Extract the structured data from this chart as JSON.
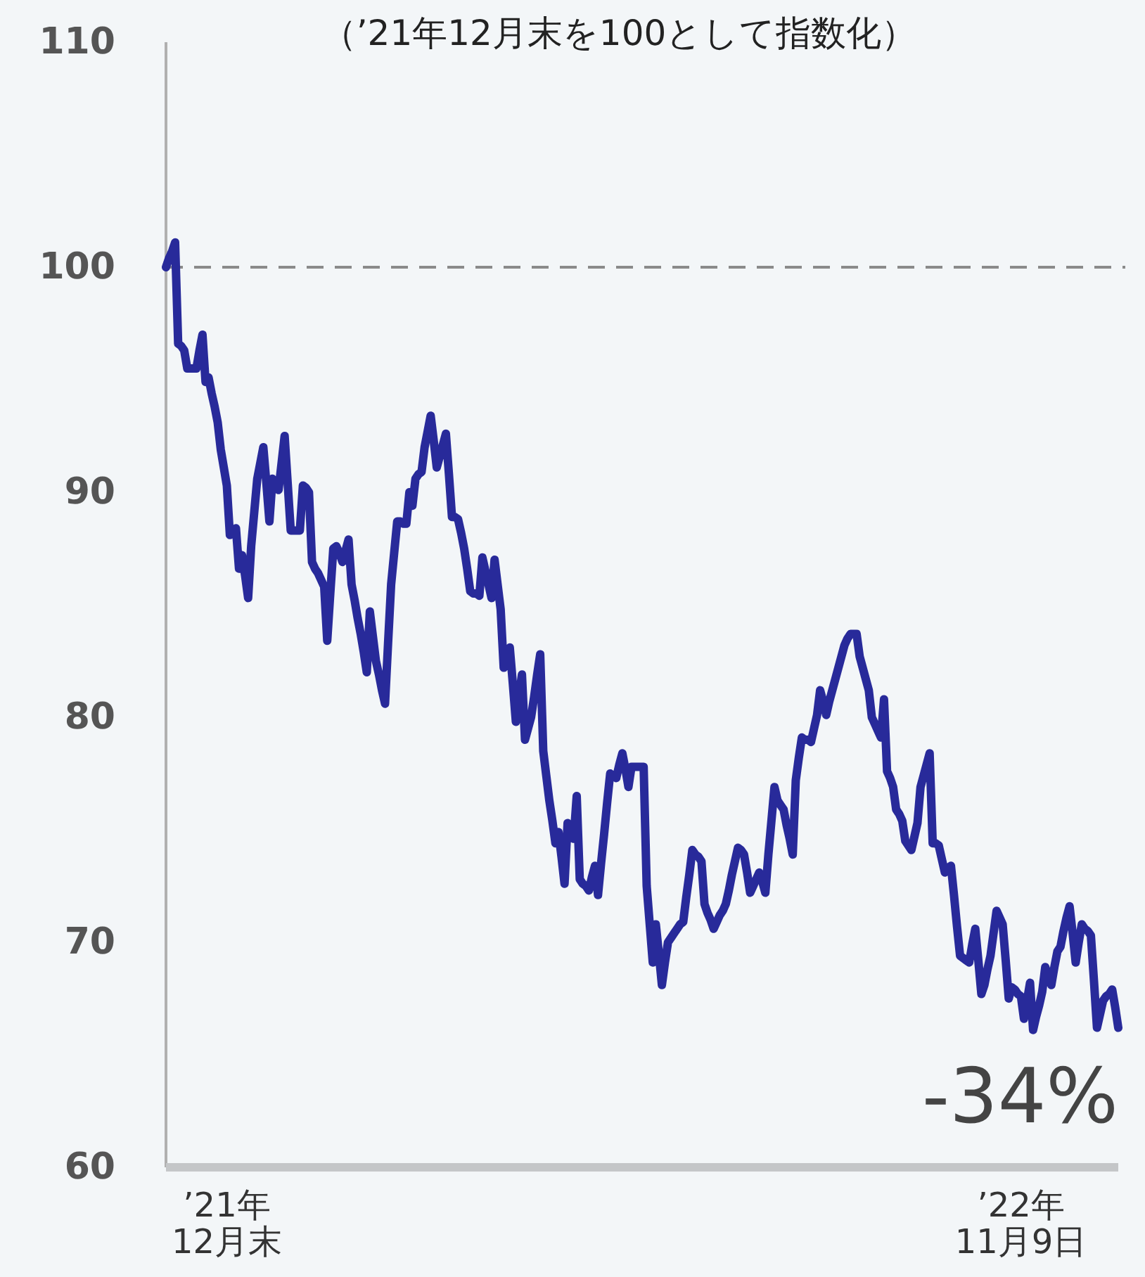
{
  "chart_data": {
    "type": "line",
    "subtitle": "（’21年12月末を100として指数化）",
    "categories": [
      null,
      null,
      null,
      null,
      null,
      null,
      null,
      null,
      null,
      null,
      null,
      null,
      null,
      null,
      null,
      null,
      null,
      null,
      null,
      null,
      "’21年\n12月末",
      null,
      null,
      null,
      null,
      null,
      null,
      null,
      null,
      null,
      null,
      null,
      null,
      null,
      null,
      null,
      null,
      null,
      null,
      null,
      null,
      null,
      null,
      null,
      null,
      null,
      null,
      null,
      null,
      null,
      null,
      null,
      null,
      null,
      null,
      null,
      null,
      null,
      null,
      null,
      null,
      null,
      null,
      null,
      null,
      null,
      null,
      null,
      null,
      null,
      null,
      null,
      null,
      null,
      null,
      null,
      null,
      null,
      null,
      null,
      null,
      null,
      null,
      null,
      null,
      null,
      null,
      null,
      null,
      null,
      null,
      null,
      null,
      null,
      null,
      null,
      null,
      null,
      null,
      null,
      null,
      null,
      null,
      null,
      null,
      null,
      null,
      null,
      null,
      null,
      null,
      null,
      null,
      null,
      null,
      null,
      null,
      null,
      null,
      null,
      null,
      null,
      null,
      null,
      null,
      null,
      null,
      null,
      null,
      null,
      null,
      null,
      null,
      null,
      null,
      null,
      null,
      null,
      null,
      null,
      null,
      null,
      null,
      null,
      null,
      null,
      null,
      null,
      null,
      null,
      null,
      null,
      null,
      null,
      null,
      null,
      null,
      null,
      null,
      null,
      null,
      null,
      null,
      null,
      null,
      null,
      null,
      null,
      null,
      null,
      null,
      null,
      null,
      null,
      null,
      null,
      null,
      null,
      null,
      null,
      null,
      null,
      null,
      null,
      null,
      null,
      null,
      null,
      null,
      null,
      null,
      null,
      null,
      null,
      null,
      null,
      null,
      null,
      null,
      null,
      null,
      null,
      null,
      null,
      null,
      null,
      null,
      null,
      null,
      null,
      null,
      null,
      null,
      null,
      null,
      null,
      null,
      null,
      null,
      null,
      null,
      null,
      null,
      null,
      null,
      null,
      null,
      null,
      null,
      null,
      null,
      null,
      null,
      null,
      null,
      null,
      null,
      null,
      null,
      null,
      null,
      null,
      null,
      null,
      null,
      null,
      null,
      null,
      null,
      null,
      null,
      null,
      null,
      null,
      null,
      null,
      null,
      null,
      null,
      null,
      null,
      null,
      null,
      null,
      null,
      null,
      null,
      null,
      null,
      null,
      null,
      null,
      null,
      null,
      null,
      null,
      null,
      null,
      null,
      null,
      null,
      "’22年\n11月9日",
      null,
      null,
      null,
      null,
      null,
      null,
      null,
      null,
      null,
      null,
      null,
      null,
      null,
      null,
      null,
      null,
      null,
      null,
      null,
      null,
      null,
      null,
      null,
      null,
      null,
      null,
      null,
      null,
      null,
      null,
      null,
      null
    ],
    "series": [
      {
        "color": "#282a9a",
        "values": [
          100,
          100.4,
          100.7,
          101.1,
          96.6,
          96.5,
          96.3,
          95.5,
          95.5,
          95.5,
          95.5,
          96.3,
          97.0,
          94.9,
          95.1,
          94.4,
          93.8,
          93.1,
          91.9,
          91.1,
          90.3,
          88.1,
          88.3,
          88.4,
          86.6,
          87.2,
          86.3,
          85.3,
          87.6,
          89.1,
          90.6,
          91.3,
          92.0,
          90.4,
          88.7,
          90.6,
          90.4,
          90.1,
          91.3,
          92.5,
          90.4,
          88.3,
          88.3,
          88.3,
          88.3,
          90.3,
          90.2,
          90.0,
          86.9,
          86.6,
          86.4,
          86.1,
          85.8,
          83.4,
          85.5,
          87.5,
          87.6,
          87.3,
          86.9,
          87.4,
          87.9,
          85.9,
          85.2,
          84.4,
          83.7,
          82.9,
          82.0,
          84.7,
          83.6,
          82.5,
          81.9,
          81.2,
          80.6,
          83.3,
          85.9,
          87.3,
          88.7,
          88.7,
          88.6,
          88.6,
          90.0,
          89.4,
          90.6,
          90.8,
          90.9,
          92.0,
          92.7,
          93.4,
          92.3,
          91.1,
          91.6,
          92.1,
          92.6,
          90.8,
          88.9,
          88.9,
          88.8,
          88.2,
          87.5,
          86.6,
          85.6,
          85.5,
          85.5,
          85.4,
          87.1,
          86.5,
          85.9,
          85.3,
          87.0,
          85.9,
          84.8,
          82.2,
          82.7,
          83.1,
          81.5,
          79.8,
          80.9,
          81.9,
          79.0,
          79.5,
          80.0,
          80.9,
          81.9,
          82.8,
          78.5,
          77.4,
          76.3,
          75.4,
          74.4,
          74.9,
          73.8,
          72.6,
          75.3,
          75.0,
          74.6,
          76.5,
          72.8,
          72.6,
          72.5,
          72.3,
          72.9,
          73.4,
          72.1,
          73.5,
          74.8,
          76.2,
          77.5,
          77.4,
          77.3,
          77.9,
          78.4,
          77.7,
          76.9,
          77.8,
          77.8,
          77.8,
          77.8,
          77.8,
          72.5,
          70.8,
          69.1,
          70.8,
          69.5,
          68.1,
          69.1,
          70.0,
          70.2,
          70.4,
          70.6,
          70.8,
          70.9,
          72.0,
          73.0,
          74.1,
          73.9,
          73.8,
          73.6,
          71.7,
          71.3,
          71.0,
          70.6,
          70.9,
          71.2,
          71.4,
          71.7,
          72.3,
          73.0,
          73.6,
          74.2,
          74.1,
          73.9,
          73.1,
          72.2,
          72.5,
          72.8,
          73.1,
          72.7,
          72.2,
          73.9,
          75.4,
          76.9,
          76.3,
          76.1,
          75.9,
          75.2,
          74.6,
          73.9,
          77.2,
          78.2,
          79.1,
          79.0,
          79.0,
          78.9,
          79.5,
          80.1,
          81.2,
          80.7,
          80.1,
          80.7,
          81.2,
          81.7,
          82.2,
          82.7,
          83.2,
          83.5,
          83.7,
          83.7,
          83.7,
          82.7,
          82.2,
          81.7,
          81.2,
          80.0,
          79.7,
          79.4,
          79.1,
          80.8,
          77.6,
          77.3,
          76.9,
          75.9,
          75.7,
          75.4,
          74.5,
          74.3,
          74.1,
          74.7,
          75.3,
          76.9,
          77.4,
          77.9,
          78.4,
          74.4,
          74.4,
          74.3,
          73.7,
          73.1,
          73.3,
          73.4,
          72.1,
          70.7,
          69.4,
          69.3,
          69.2,
          69.1,
          69.9,
          70.6,
          69.2,
          67.7,
          68.1,
          68.8,
          69.4,
          70.4,
          71.4,
          71.1,
          70.8,
          69.2,
          67.5,
          68.0,
          67.9,
          67.7,
          67.6,
          66.6,
          67.4,
          68.2,
          66.1,
          66.7,
          67.2,
          67.8,
          68.9,
          68.5,
          68.1,
          68.9,
          69.6,
          69.8,
          70.5,
          71.1,
          71.6,
          70.4,
          69.1,
          70.0,
          70.8,
          70.6,
          70.5,
          70.3,
          68.3,
          66.2,
          66.8,
          67.4,
          67.6,
          67.7,
          67.9,
          67.1,
          66.2
        ]
      }
    ],
    "ylim": [
      60,
      110
    ],
    "yticks": [
      60,
      70,
      80,
      90,
      100,
      110
    ],
    "ref_lines": [
      {
        "axis": "y",
        "value": 100,
        "color": "#8a8a8a",
        "line_style": "dashed"
      }
    ],
    "annotations": [
      "-34%"
    ],
    "grid": false,
    "line_style": "solid",
    "marker": "none"
  }
}
